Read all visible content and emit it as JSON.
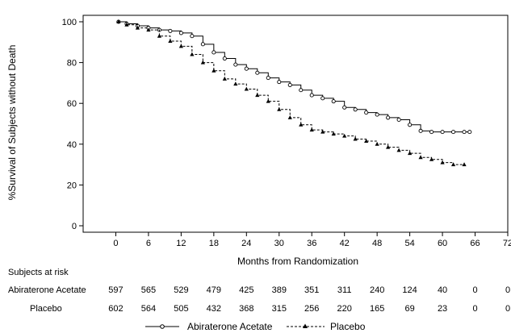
{
  "chart_data": {
    "type": "line",
    "xlabel": "Months from Randomization",
    "ylabel": "%Survival of Subjects without Death",
    "xlim": [
      -6,
      72
    ],
    "ylim": [
      0,
      100
    ],
    "x_ticks": [
      0,
      6,
      12,
      18,
      24,
      30,
      36,
      42,
      48,
      54,
      60,
      66,
      72
    ],
    "y_ticks": [
      0,
      20,
      40,
      60,
      80,
      100
    ],
    "grid": false,
    "legend_position": "bottom",
    "series": [
      {
        "name": "Abiraterone Acetate",
        "line_style": "solid",
        "marker": "circle",
        "x": [
          0.5,
          2,
          4,
          6,
          8,
          10,
          12,
          14,
          16,
          18,
          20,
          22,
          24,
          26,
          28,
          30,
          32,
          34,
          36,
          38,
          40,
          42,
          44,
          46,
          48,
          50,
          52,
          54,
          56,
          58,
          60,
          62,
          64,
          65
        ],
        "y": [
          100,
          99,
          98,
          97,
          96,
          95.5,
          94.5,
          93,
          89,
          85,
          82,
          79,
          77,
          75,
          72.5,
          70.5,
          69,
          66.5,
          64,
          62.5,
          61,
          58,
          57,
          55.5,
          54.5,
          53,
          52,
          49.5,
          46.5,
          46,
          46,
          46,
          46,
          46
        ]
      },
      {
        "name": "Placebo",
        "line_style": "dashed",
        "marker": "triangle",
        "x": [
          0.5,
          2,
          4,
          6,
          8,
          10,
          12,
          14,
          16,
          18,
          20,
          22,
          24,
          26,
          28,
          30,
          32,
          34,
          36,
          38,
          40,
          42,
          44,
          46,
          48,
          50,
          52,
          54,
          56,
          58,
          60,
          62,
          64
        ],
        "y": [
          100,
          98.5,
          97,
          96,
          93,
          90.5,
          88,
          84,
          80,
          76,
          72,
          69.5,
          67,
          64,
          61,
          57,
          53,
          49.5,
          47,
          46,
          45,
          44,
          42.5,
          41.5,
          40,
          38.5,
          37,
          35.5,
          33.5,
          32.5,
          31,
          30,
          30
        ]
      }
    ],
    "risk_table": {
      "title": "Subjects at risk",
      "rows": [
        {
          "label": "Abiraterone Acetate",
          "values": [
            "597",
            "565",
            "529",
            "479",
            "425",
            "389",
            "351",
            "311",
            "240",
            "124",
            "40",
            "0",
            "0"
          ]
        },
        {
          "label": "Placebo",
          "values": [
            "602",
            "564",
            "505",
            "432",
            "368",
            "315",
            "256",
            "220",
            "165",
            "69",
            "23",
            "0",
            "0"
          ]
        }
      ]
    }
  }
}
